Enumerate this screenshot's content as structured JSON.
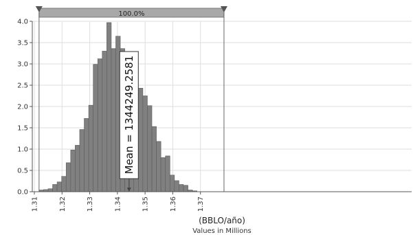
{
  "chart_data": {
    "type": "bar",
    "xlabel": "(BBLO/año)",
    "xsublabel": "Values in Millions",
    "xlim": [
      1.31,
      1.3785
    ],
    "ylim": [
      0,
      4.0
    ],
    "xticks": [
      "1.31",
      "1.32",
      "1.33",
      "1.34",
      "1.35",
      "1.36",
      "1.37"
    ],
    "yticks": [
      "0.0",
      "0.5",
      "1.0",
      "1.5",
      "2.0",
      "2.5",
      "3.0",
      "3.5",
      "4.0"
    ],
    "grid": true,
    "bin_start": 1.3117,
    "bin_width": 0.00163,
    "values": [
      0.04,
      0.05,
      0.07,
      0.17,
      0.23,
      0.36,
      0.68,
      0.98,
      1.09,
      1.46,
      1.72,
      2.03,
      2.99,
      3.12,
      3.3,
      3.97,
      3.36,
      3.65,
      3.36,
      3.29,
      3.26,
      2.95,
      2.43,
      2.25,
      2.02,
      1.53,
      1.18,
      0.8,
      0.84,
      0.39,
      0.26,
      0.17,
      0.15,
      0.04,
      0.02
    ],
    "range_band": {
      "label": "100.0%",
      "from": 1.3117,
      "to": 1.3785
    },
    "mean": {
      "label": "Mean = 1344249.2581",
      "value": 1.3442
    },
    "colors": {
      "bar": "#808080",
      "bar_edge": "#5c5c5c",
      "band": "#a8a8a8",
      "grid": "#dedede",
      "axis": "#555555"
    }
  }
}
